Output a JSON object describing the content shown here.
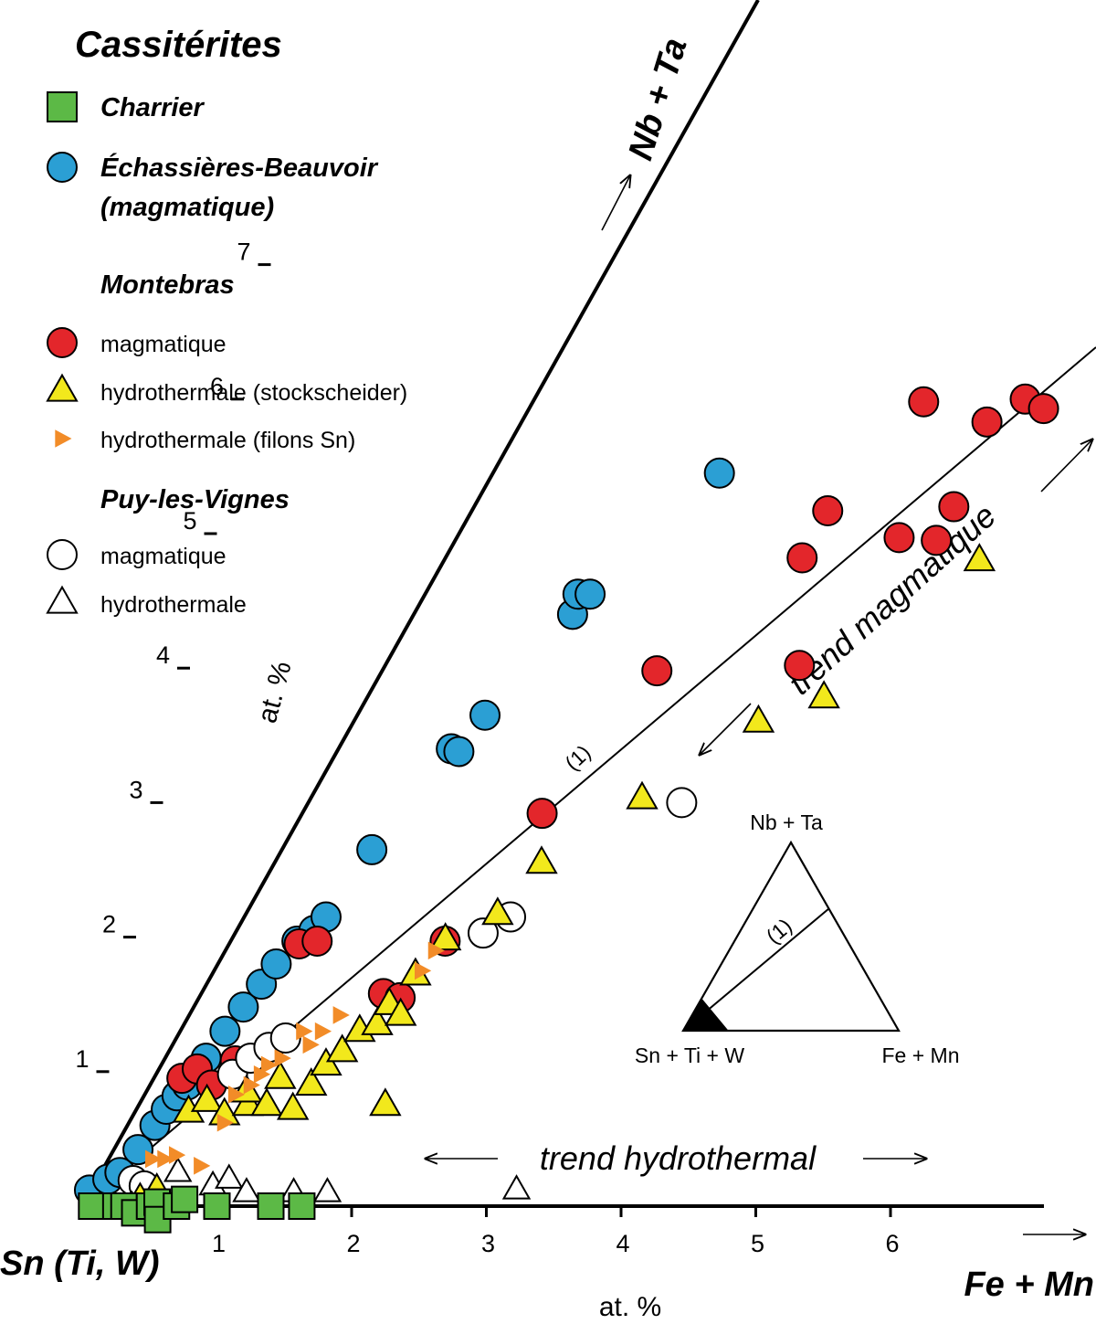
{
  "chart_data": {
    "type": "scatter",
    "diagram": "ternary-corner",
    "legend": {
      "title": "Cassitérites",
      "entries": [
        {
          "key": "charrier",
          "label": "Charrier",
          "marker": "square",
          "color": "#5cb946",
          "style": "bold-italic"
        },
        {
          "key": "echassieres",
          "label": "Échassières-Beauvoir",
          "label2": "(magmatique)",
          "marker": "circle",
          "color": "#2b9fd4",
          "style": "bold-italic"
        },
        {
          "group": "Montebras"
        },
        {
          "key": "montebras_mag",
          "label": "magmatique",
          "marker": "circle",
          "color": "#e3262b"
        },
        {
          "key": "montebras_stock",
          "label": "hydrothermale (stockscheider)",
          "marker": "triangle",
          "color": "#f2e81c"
        },
        {
          "key": "montebras_filons",
          "label": "hydrothermale (filons Sn)",
          "marker": "triangle-right",
          "color": "#f28c28"
        },
        {
          "group": "Puy-les-Vignes"
        },
        {
          "key": "puy_mag",
          "label": "magmatique",
          "marker": "circle",
          "color": "#ffffff"
        },
        {
          "key": "puy_hyd",
          "label": "hydrothermale",
          "marker": "triangle",
          "color": "#ffffff"
        }
      ]
    },
    "axes": {
      "origin_label": "Sn (Ti, W)",
      "x_label": "Fe + Mn",
      "x_unit": "at. %",
      "x_ticks": [
        "1",
        "2",
        "3",
        "4",
        "5",
        "6"
      ],
      "y_label": "Nb + Ta",
      "y_unit": "at. %",
      "y_ticks": [
        "1",
        "2",
        "3",
        "4",
        "5",
        "6",
        "7"
      ]
    },
    "trend_line_label": "(1)",
    "trend_labels": {
      "magmatic": "trend magmatique",
      "hydrothermal": "trend hydrothermal"
    },
    "inset": {
      "top": "Nb + Ta",
      "left": "Sn + Ti + W",
      "right": "Fe + Mn",
      "line_label": "(1)"
    },
    "series": {
      "charrier": [
        [
          0.07,
          0
        ],
        [
          0.25,
          0
        ],
        [
          0.31,
          0
        ],
        [
          0.4,
          -0.05
        ],
        [
          0.5,
          0
        ],
        [
          0.55,
          0.03
        ],
        [
          0.58,
          -0.1
        ],
        [
          0.7,
          0
        ],
        [
          0.75,
          0.05
        ],
        [
          1.0,
          0
        ],
        [
          1.4,
          0
        ],
        [
          1.63,
          0
        ]
      ],
      "echassieres": [
        [
          0.03,
          0.12
        ],
        [
          0.15,
          0.2
        ],
        [
          0.23,
          0.25
        ],
        [
          0.33,
          0.42
        ],
        [
          0.42,
          0.6
        ],
        [
          0.48,
          0.72
        ],
        [
          0.54,
          0.82
        ],
        [
          0.6,
          0.9
        ],
        [
          0.7,
          1.1
        ],
        [
          0.8,
          1.3
        ],
        [
          0.9,
          1.48
        ],
        [
          1.0,
          1.65
        ],
        [
          1.08,
          1.8
        ],
        [
          1.2,
          1.97
        ],
        [
          1.31,
          2.05
        ],
        [
          1.38,
          2.15
        ],
        [
          1.62,
          2.65
        ],
        [
          2.06,
          3.4
        ],
        [
          2.12,
          3.38
        ],
        [
          2.26,
          3.65
        ],
        [
          2.76,
          4.4
        ],
        [
          2.77,
          4.55
        ],
        [
          2.86,
          4.55
        ],
        [
          3.64,
          5.45
        ]
      ],
      "montebras_mag": [
        [
          0.55,
          0.95
        ],
        [
          0.65,
          1.02
        ],
        [
          0.78,
          0.9
        ],
        [
          0.92,
          1.08
        ],
        [
          1.22,
          1.95
        ],
        [
          1.35,
          1.97
        ],
        [
          1.92,
          1.58
        ],
        [
          2.05,
          1.55
        ],
        [
          2.3,
          1.97
        ],
        [
          2.83,
          2.92
        ],
        [
          3.47,
          3.98
        ],
        [
          4.38,
          4.82
        ],
        [
          4.52,
          4.02
        ],
        [
          4.5,
          5.17
        ],
        [
          5.07,
          4.97
        ],
        [
          5.35,
          4.95
        ],
        [
          5.43,
          5.2
        ],
        [
          5.05,
          5.98
        ],
        [
          5.55,
          5.83
        ],
        [
          5.8,
          6.0
        ],
        [
          5.95,
          5.93
        ],
        [
          6.77,
          5.95
        ],
        [
          6.82,
          5.78
        ],
        [
          7.05,
          5.93
        ],
        [
          7.42,
          6.85
        ],
        [
          7.5,
          6.98
        ]
      ],
      "montebras_stock": [
        [
          0.42,
          0.05
        ],
        [
          0.53,
          0.12
        ],
        [
          0.65,
          0.7
        ],
        [
          0.77,
          0.78
        ],
        [
          0.92,
          0.68
        ],
        [
          1.08,
          0.75
        ],
        [
          1.05,
          0.85
        ],
        [
          1.22,
          0.75
        ],
        [
          1.28,
          0.95
        ],
        [
          1.42,
          0.72
        ],
        [
          1.52,
          0.9
        ],
        [
          1.6,
          1.05
        ],
        [
          1.7,
          1.15
        ],
        [
          1.8,
          1.3
        ],
        [
          1.92,
          1.35
        ],
        [
          1.98,
          1.5
        ],
        [
          2.08,
          1.42
        ],
        [
          2.1,
          0.75
        ],
        [
          2.13,
          1.72
        ],
        [
          2.3,
          1.98
        ],
        [
          2.65,
          2.17
        ],
        [
          2.9,
          2.55
        ],
        [
          3.55,
          3.03
        ],
        [
          4.3,
          3.6
        ],
        [
          4.75,
          3.78
        ],
        [
          5.7,
          4.8
        ]
      ],
      "montebras_filons": [
        [
          0.45,
          0.35
        ],
        [
          0.54,
          0.35
        ],
        [
          0.62,
          0.38
        ],
        [
          0.82,
          0.3
        ],
        [
          0.93,
          0.62
        ],
        [
          0.97,
          0.83
        ],
        [
          1.07,
          0.9
        ],
        [
          1.13,
          0.98
        ],
        [
          1.17,
          1.05
        ],
        [
          1.26,
          1.1
        ],
        [
          1.38,
          1.3
        ],
        [
          1.45,
          1.2
        ],
        [
          1.52,
          1.3
        ],
        [
          1.63,
          1.42
        ],
        [
          2.17,
          1.75
        ],
        [
          2.24,
          1.9
        ]
      ],
      "puy_mag": [
        [
          0.34,
          0.19
        ],
        [
          0.43,
          0.15
        ],
        [
          0.92,
          0.98
        ],
        [
          1.03,
          1.1
        ],
        [
          1.15,
          1.18
        ],
        [
          1.26,
          1.25
        ],
        [
          2.57,
          2.03
        ],
        [
          2.75,
          2.15
        ],
        [
          3.85,
          3.0
        ]
      ],
      "puy_hyd": [
        [
          0.37,
          0.0
        ],
        [
          0.54,
          0.1
        ],
        [
          0.66,
          0.25
        ],
        [
          0.94,
          0.15
        ],
        [
          1.05,
          0.2
        ],
        [
          1.2,
          0.1
        ],
        [
          1.55,
          0.1
        ],
        [
          1.8,
          0.1
        ],
        [
          3.2,
          0.12
        ]
      ]
    }
  }
}
